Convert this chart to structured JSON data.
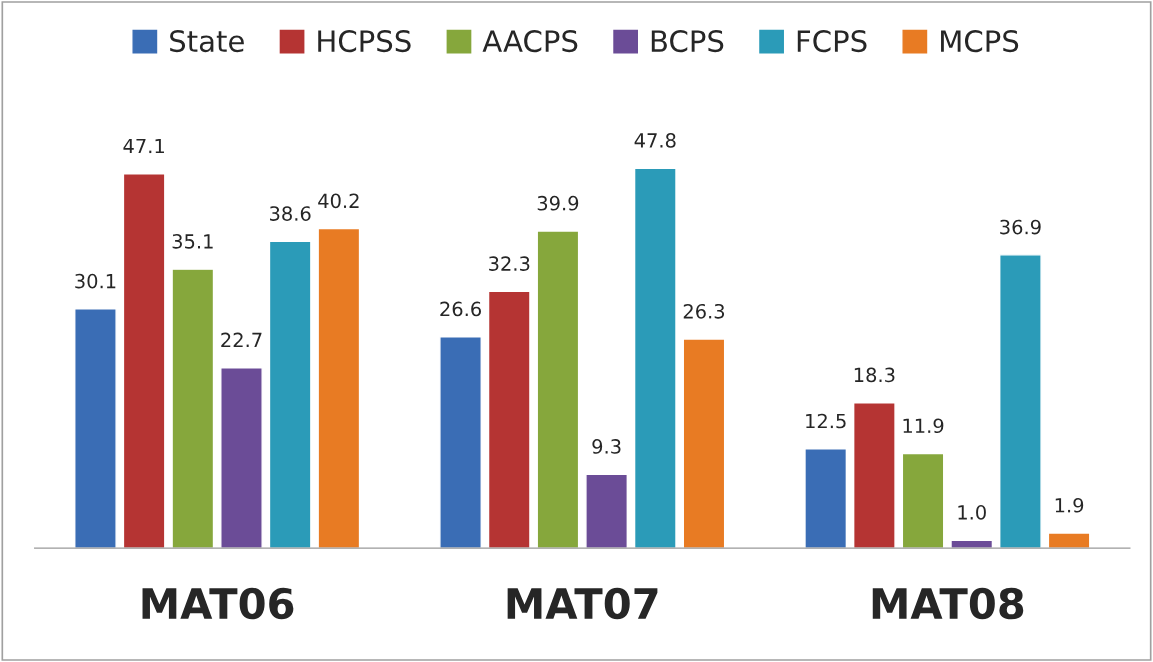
{
  "chart_data": {
    "type": "bar",
    "categories": [
      "MAT06",
      "MAT07",
      "MAT08"
    ],
    "series": [
      {
        "name": "State",
        "color": "#3a6db5",
        "values": [
          30.1,
          26.6,
          12.5
        ],
        "value_labels": [
          "30.1",
          "26.6",
          "12.5"
        ]
      },
      {
        "name": "HCPSS",
        "color": "#b53433",
        "values": [
          47.1,
          32.3,
          18.3
        ],
        "value_labels": [
          "47.1",
          "32.3",
          "18.3"
        ]
      },
      {
        "name": "AACPS",
        "color": "#86a73c",
        "values": [
          35.1,
          39.9,
          11.9
        ],
        "value_labels": [
          "35.1",
          "39.9",
          "11.9"
        ]
      },
      {
        "name": "BCPS",
        "color": "#6b4c97",
        "values": [
          22.7,
          9.3,
          1.0
        ],
        "value_labels": [
          "22.7",
          "9.3",
          "1.0"
        ]
      },
      {
        "name": "FCPS",
        "color": "#2b9bb8",
        "values": [
          38.6,
          47.8,
          36.9
        ],
        "value_labels": [
          "38.6",
          "47.8",
          "36.9"
        ]
      },
      {
        "name": "MCPS",
        "color": "#e87b23",
        "values": [
          40.2,
          26.3,
          1.9
        ],
        "value_labels": [
          "40.2",
          "26.3",
          "1.9"
        ]
      }
    ],
    "legend": "top",
    "grid": false,
    "tick_labels": "x"
  }
}
